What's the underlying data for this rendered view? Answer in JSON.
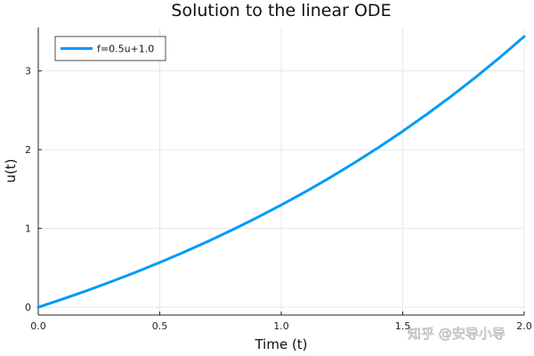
{
  "chart_data": {
    "type": "line",
    "title": "Solution to the linear ODE",
    "xlabel": "Time (t)",
    "ylabel": "u(t)",
    "xlim": [
      0,
      2
    ],
    "ylim": [
      -0.1,
      3.55
    ],
    "xticks": [
      0,
      0.5,
      1,
      1.5,
      2
    ],
    "xtick_labels": [
      "0.0",
      "0.5",
      "1.0",
      "1.5",
      "2.0"
    ],
    "yticks": [
      0,
      1,
      2,
      3
    ],
    "ytick_labels": [
      "0",
      "1",
      "2",
      "3"
    ],
    "grid": true,
    "legend_position": "top-left",
    "series": [
      {
        "name": "f=0.5u+1.0",
        "color": "#009af9",
        "x": [
          0,
          0.1,
          0.2,
          0.3,
          0.4,
          0.5,
          0.6,
          0.7,
          0.8,
          0.9,
          1.0,
          1.1,
          1.2,
          1.3,
          1.4,
          1.5,
          1.6,
          1.7,
          1.8,
          1.9,
          2.0
        ],
        "y": [
          0,
          0.1026,
          0.2103,
          0.3237,
          0.4428,
          0.568,
          0.6997,
          0.8381,
          0.9837,
          1.1366,
          1.2974,
          1.4665,
          1.6442,
          1.831,
          2.0274,
          2.234,
          2.4511,
          2.6794,
          2.9194,
          3.1717,
          3.4366
        ]
      }
    ]
  },
  "watermark": "知乎 @安导小导"
}
